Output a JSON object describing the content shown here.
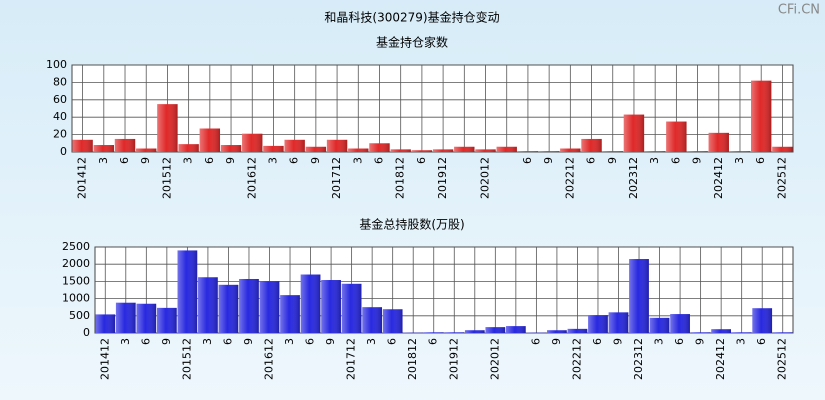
{
  "title": "和晶科技(300279)基金持仓变动",
  "watermark": "CFi.CN",
  "chart_data": [
    {
      "type": "bar",
      "title": "基金持仓家数",
      "categories": [
        "201412",
        "3",
        "6",
        "9",
        "201512",
        "3",
        "6",
        "9",
        "201612",
        "3",
        "6",
        "9",
        "201712",
        "3",
        "6",
        "201812",
        "6",
        "201912",
        null,
        "202012",
        null,
        "6",
        "9",
        "202212",
        "6",
        "9",
        "202312",
        "3",
        "6",
        "9",
        "202412",
        "3",
        "6",
        "202512"
      ],
      "values": [
        14,
        8,
        15,
        4,
        55,
        9,
        27,
        8,
        21,
        7,
        14,
        6,
        14,
        4,
        10,
        3,
        2,
        3,
        6,
        3,
        6,
        1,
        1,
        4,
        15,
        1,
        43,
        1,
        35,
        1,
        22,
        1,
        82,
        6
      ],
      "color": "#e02828",
      "ylim": [
        0,
        100
      ],
      "yticks": [
        0,
        20,
        40,
        60,
        80,
        100
      ],
      "grid": true
    },
    {
      "type": "bar",
      "title": "基金总持股数(万股)",
      "categories": [
        "201412",
        "3",
        "6",
        "9",
        "201512",
        "3",
        "6",
        "9",
        "201612",
        "3",
        "6",
        "9",
        "201712",
        "3",
        "6",
        "201812",
        "6",
        "201912",
        null,
        "202012",
        null,
        "6",
        "9",
        "202212",
        "6",
        "9",
        "202312",
        "3",
        "6",
        "9",
        "202412",
        "3",
        "6",
        "202512"
      ],
      "values": [
        540,
        880,
        850,
        730,
        2400,
        1620,
        1400,
        1570,
        1500,
        1100,
        1700,
        1540,
        1430,
        750,
        690,
        10,
        20,
        20,
        80,
        170,
        200,
        10,
        80,
        120,
        520,
        600,
        2150,
        440,
        550,
        20,
        110,
        20,
        720,
        20
      ],
      "color": "#2828e0",
      "ylim": [
        0,
        2500
      ],
      "yticks": [
        0,
        500,
        1000,
        1500,
        2000,
        2500
      ],
      "grid": true
    }
  ]
}
